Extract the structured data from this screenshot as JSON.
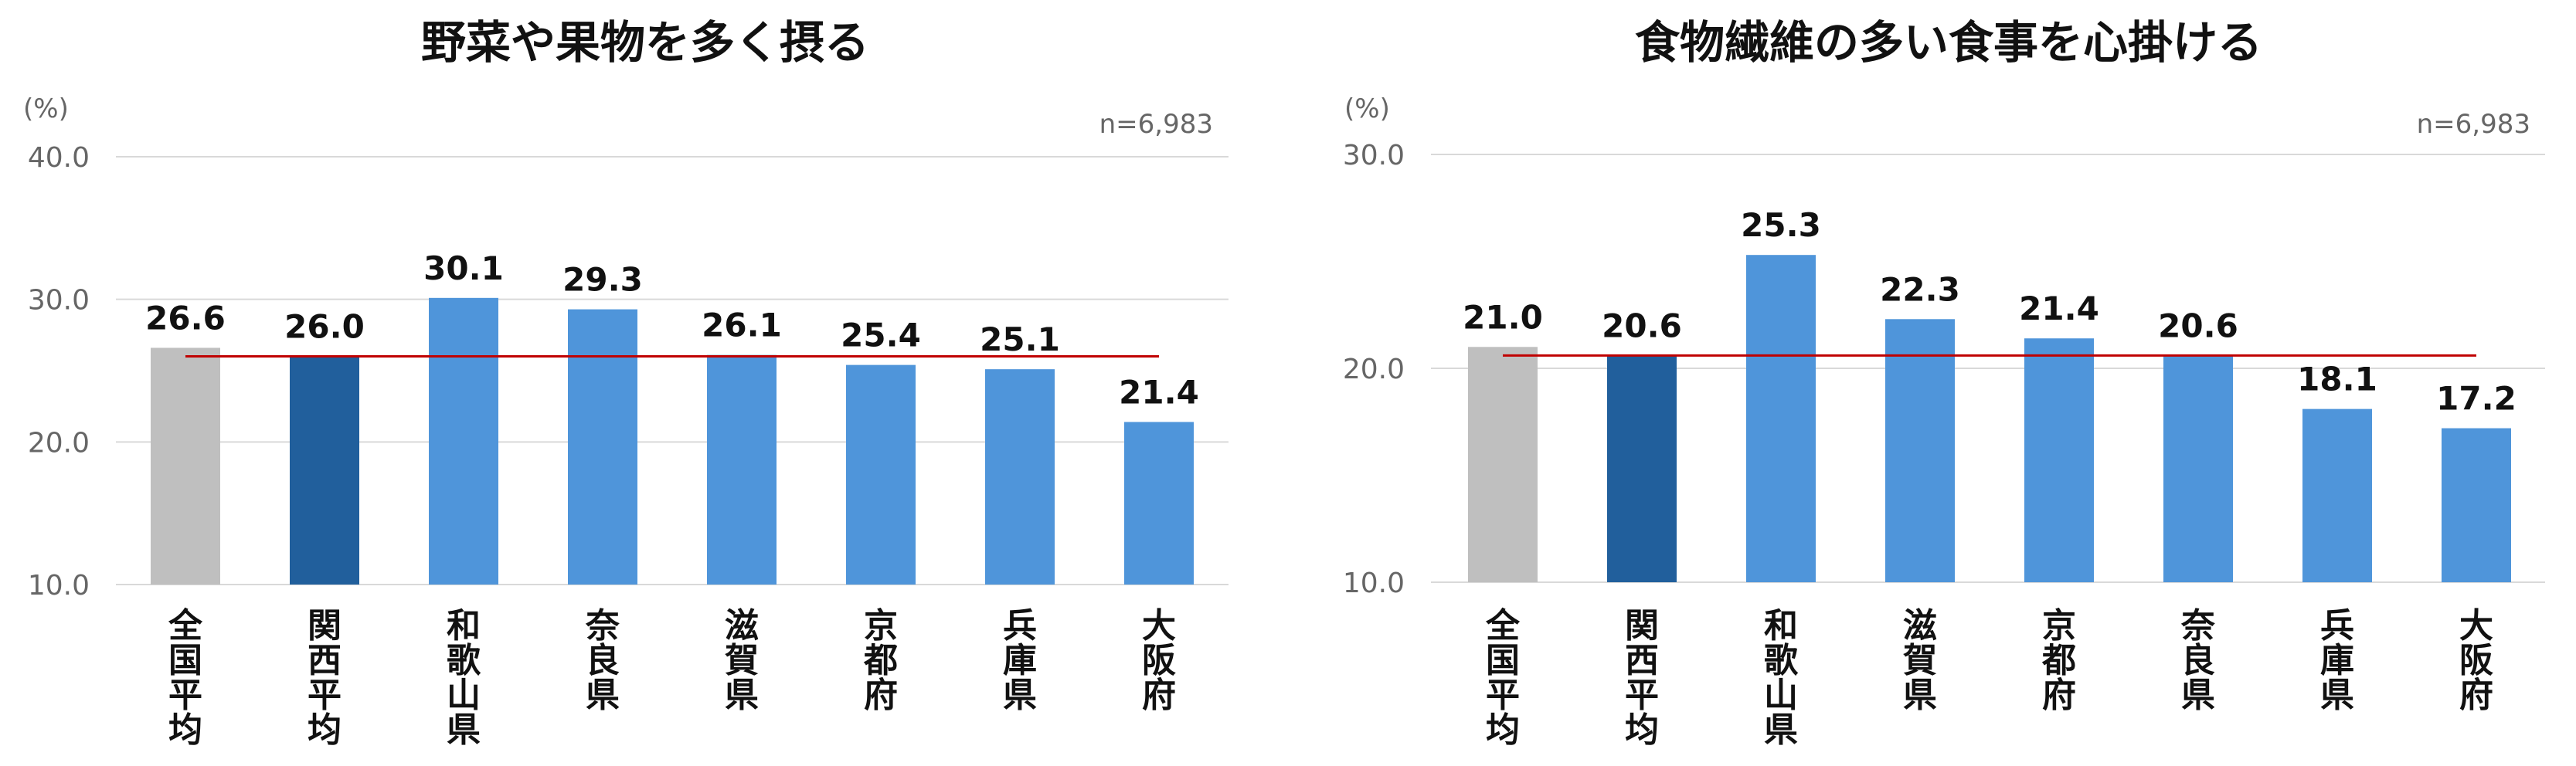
{
  "colors": {
    "national": "#bfbfbf",
    "kansai": "#215f9c",
    "prefecture": "#4f95da",
    "reference_line": "#c00000",
    "gridline": "#d9d9d9"
  },
  "chart_data": [
    {
      "type": "bar",
      "title": "野菜や果物を多く摂る",
      "unit": "(%)",
      "sample_size": "n=6,983",
      "categories": [
        "全国平均",
        "関西平均",
        "和歌山県",
        "奈良県",
        "滋賀県",
        "京都府",
        "兵庫県",
        "大阪府"
      ],
      "values": [
        26.6,
        26.0,
        30.1,
        29.3,
        26.1,
        25.4,
        25.1,
        21.4
      ],
      "value_labels": [
        "26.6",
        "26.0",
        "30.1",
        "29.3",
        "26.1",
        "25.4",
        "25.1",
        "21.4"
      ],
      "reference_line": 26.0,
      "ylim": [
        10.0,
        40.0
      ],
      "yticks": [
        "10.0",
        "20.0",
        "30.0",
        "40.0"
      ],
      "grid": true,
      "legend": "none"
    },
    {
      "type": "bar",
      "title": "食物繊維の多い食事を心掛ける",
      "unit": "(%)",
      "sample_size": "n=6,983",
      "categories": [
        "全国平均",
        "関西平均",
        "和歌山県",
        "滋賀県",
        "京都府",
        "奈良県",
        "兵庫県",
        "大阪府"
      ],
      "values": [
        21.0,
        20.6,
        25.3,
        22.3,
        21.4,
        20.6,
        18.1,
        17.2
      ],
      "value_labels": [
        "21.0",
        "20.6",
        "25.3",
        "22.3",
        "21.4",
        "20.6",
        "18.1",
        "17.2"
      ],
      "reference_line": 20.6,
      "ylim": [
        10.0,
        30.0
      ],
      "yticks": [
        "10.0",
        "20.0",
        "30.0"
      ],
      "grid": true,
      "legend": "none"
    }
  ]
}
